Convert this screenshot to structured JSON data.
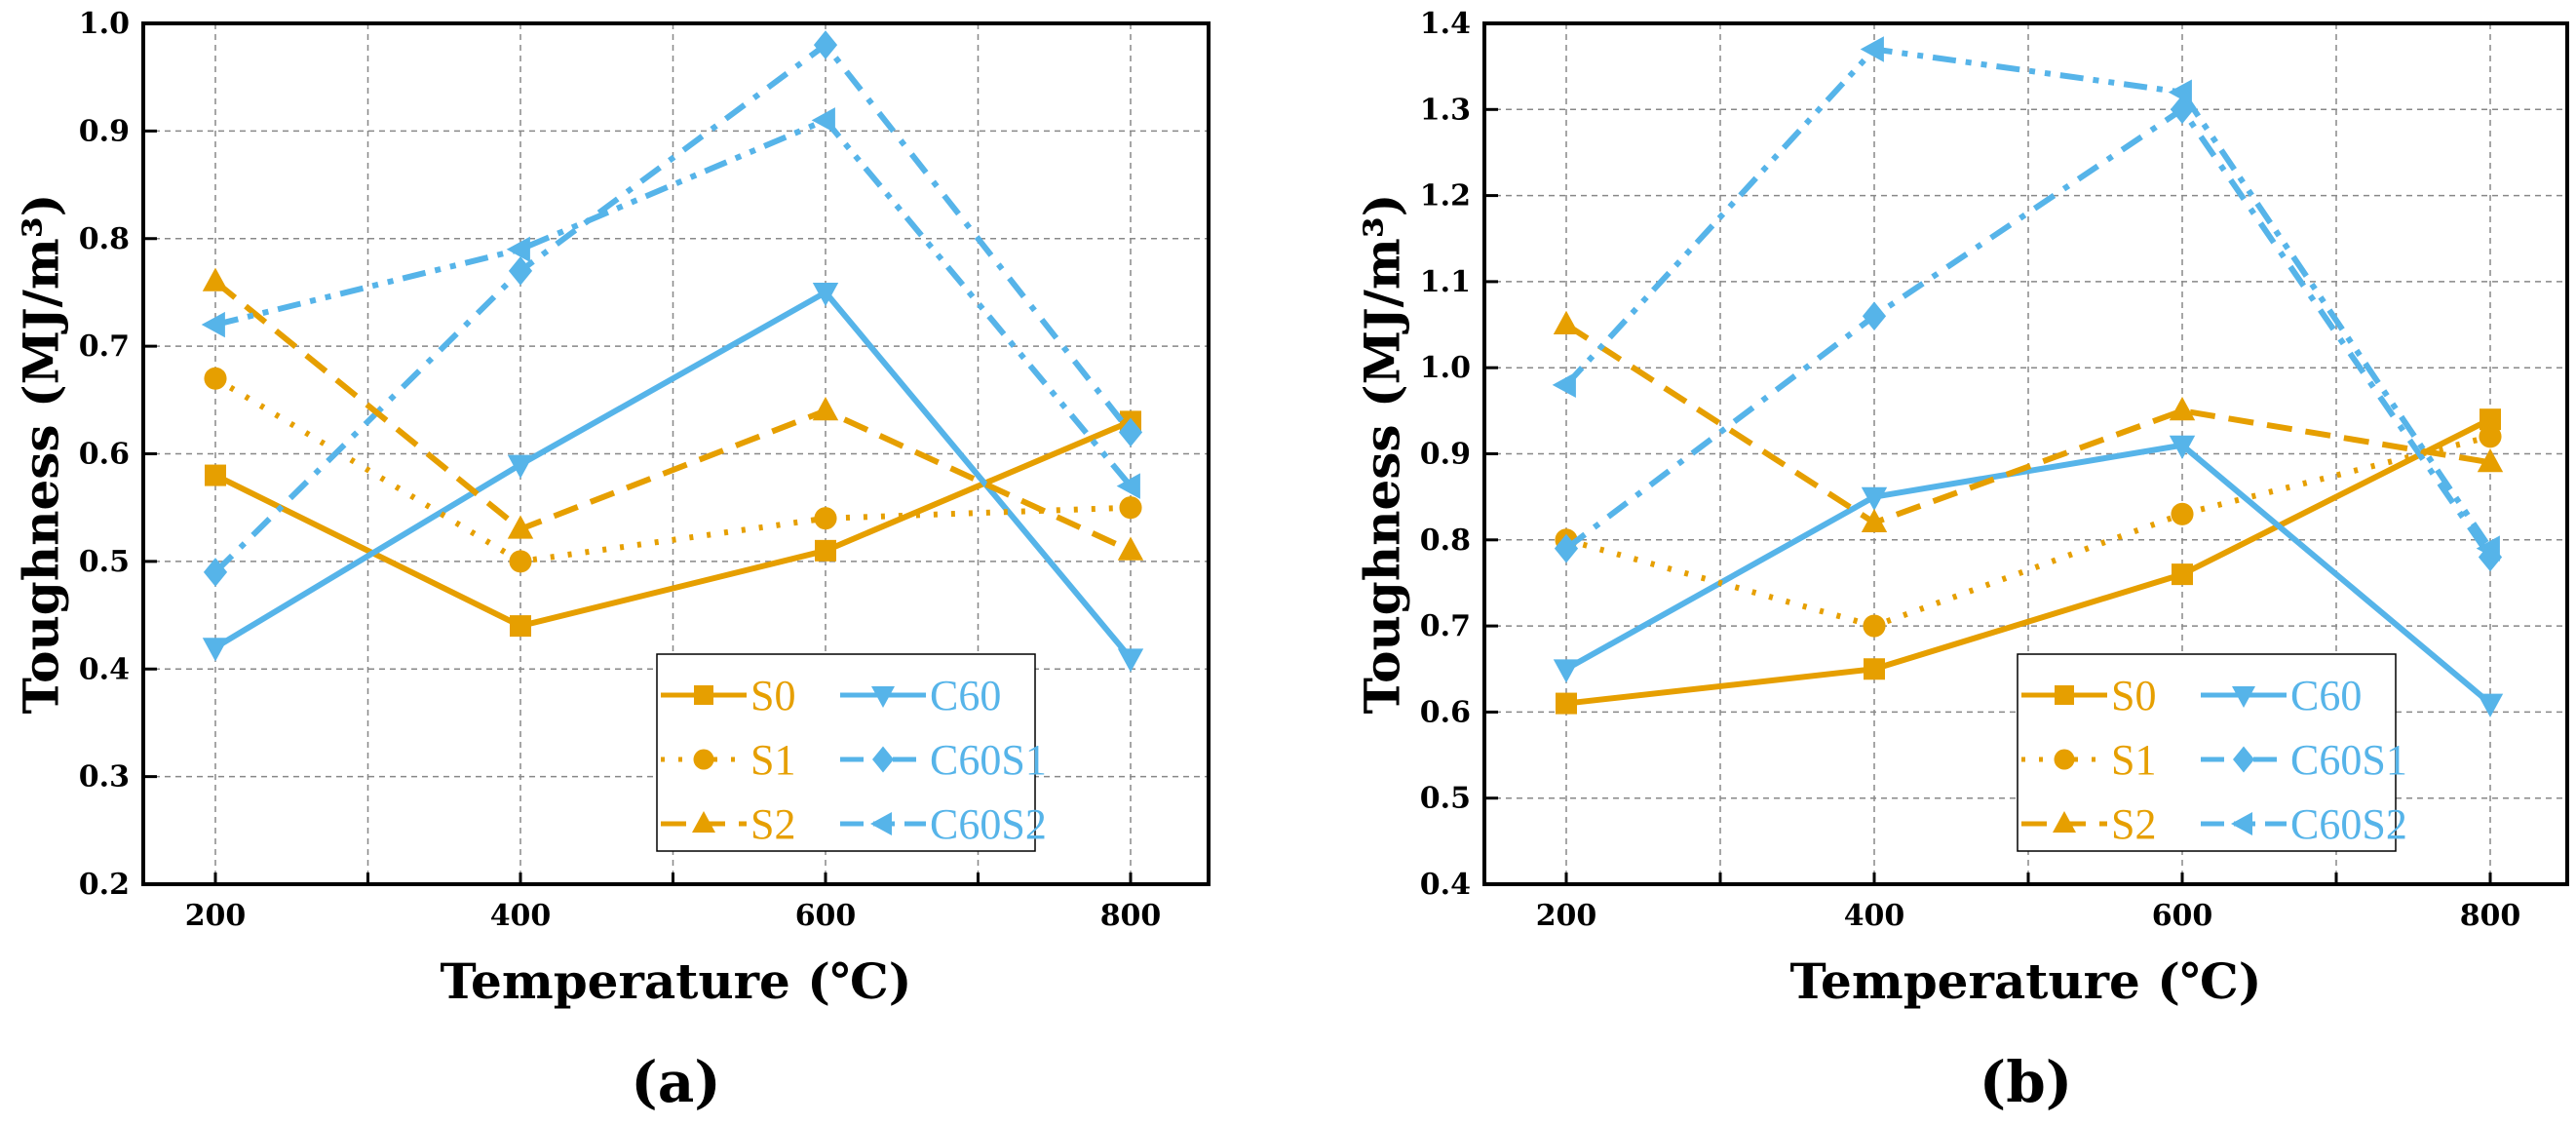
{
  "colors": {
    "orange": "#E69F00",
    "blue": "#56B4E9"
  },
  "chart_data": [
    {
      "type": "line",
      "panel_label": "(a)",
      "xlabel": "Temperature (℃)",
      "ylabel": "Toughness (MJ/m³)",
      "x": [
        200,
        400,
        600,
        800
      ],
      "xticks": [
        "200",
        "400",
        "600",
        "800"
      ],
      "xlim": [
        100,
        900
      ],
      "ylim": [
        0.2,
        1.0
      ],
      "yticks": [
        "0.2",
        "0.3",
        "0.4",
        "0.5",
        "0.6",
        "0.7",
        "0.8",
        "0.9",
        "1.0"
      ],
      "grid": true,
      "legend_position": "bottom-right",
      "series": [
        {
          "name": "S0",
          "color": "orange",
          "marker": "square",
          "dash": "solid",
          "values": [
            0.58,
            0.44,
            0.51,
            0.63
          ]
        },
        {
          "name": "C60",
          "color": "blue",
          "marker": "triangle-down",
          "dash": "solid",
          "values": [
            0.42,
            0.59,
            0.75,
            0.41
          ]
        },
        {
          "name": "S1",
          "color": "orange",
          "marker": "circle",
          "dash": "dot",
          "values": [
            0.67,
            0.5,
            0.54,
            0.55
          ]
        },
        {
          "name": "C60S1",
          "color": "blue",
          "marker": "diamond",
          "dash": "dashdot",
          "values": [
            0.49,
            0.77,
            0.98,
            0.62
          ]
        },
        {
          "name": "S2",
          "color": "orange",
          "marker": "triangle-up",
          "dash": "dash",
          "values": [
            0.76,
            0.53,
            0.64,
            0.51
          ]
        },
        {
          "name": "C60S2",
          "color": "blue",
          "marker": "triangle-left",
          "dash": "dashdotdot",
          "values": [
            0.72,
            0.79,
            0.91,
            0.57
          ]
        }
      ]
    },
    {
      "type": "line",
      "panel_label": "(b)",
      "xlabel": "Temperature (℃)",
      "ylabel": "Toughness (MJ/m³)",
      "x": [
        200,
        400,
        600,
        800
      ],
      "xticks": [
        "200",
        "400",
        "600",
        "800"
      ],
      "xlim": [
        100,
        900
      ],
      "ylim": [
        0.4,
        1.4
      ],
      "yticks": [
        "0.4",
        "0.5",
        "0.6",
        "0.7",
        "0.8",
        "0.9",
        "1.0",
        "1.1",
        "1.2",
        "1.3",
        "1.4"
      ],
      "grid": true,
      "legend_position": "bottom-right",
      "series": [
        {
          "name": "S0",
          "color": "orange",
          "marker": "square",
          "dash": "solid",
          "values": [
            0.61,
            0.65,
            0.76,
            0.94
          ]
        },
        {
          "name": "C60",
          "color": "blue",
          "marker": "triangle-down",
          "dash": "solid",
          "values": [
            0.65,
            0.85,
            0.91,
            0.61
          ]
        },
        {
          "name": "S1",
          "color": "orange",
          "marker": "circle",
          "dash": "dot",
          "values": [
            0.8,
            0.7,
            0.83,
            0.92
          ]
        },
        {
          "name": "C60S1",
          "color": "blue",
          "marker": "diamond",
          "dash": "dashdot",
          "values": [
            0.79,
            1.06,
            1.3,
            0.78
          ]
        },
        {
          "name": "S2",
          "color": "orange",
          "marker": "triangle-up",
          "dash": "dash",
          "values": [
            1.05,
            0.82,
            0.95,
            0.89
          ]
        },
        {
          "name": "C60S2",
          "color": "blue",
          "marker": "triangle-left",
          "dash": "dashdotdot",
          "values": [
            0.98,
            1.37,
            1.32,
            0.79
          ]
        }
      ]
    }
  ]
}
